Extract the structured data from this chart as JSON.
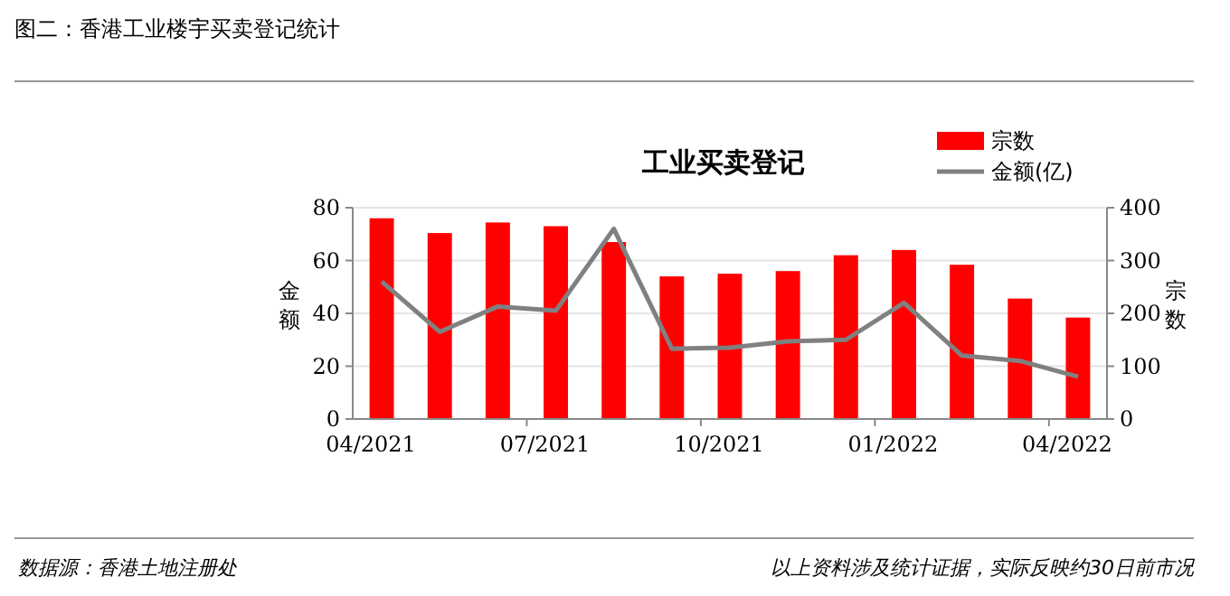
{
  "chart_data": {
    "type": "bar",
    "title": "图二：香港工业楼宇买卖登记统计",
    "subtitle": "工业买卖登记",
    "categories": [
      "04/2021",
      null,
      null,
      "07/2021",
      null,
      null,
      "10/2021",
      null,
      null,
      "01/2022",
      null,
      null,
      "04/2022"
    ],
    "series": [
      {
        "name": "宗数",
        "axis": "y2",
        "color": "#ff0000",
        "values": [
          380,
          352,
          372,
          365,
          335,
          270,
          275,
          280,
          310,
          320,
          292,
          228,
          192
        ]
      },
      {
        "name": "金额(亿)",
        "type": "line",
        "axis": "y",
        "color": "#808080",
        "values": [
          52,
          33,
          42.6,
          41,
          72,
          26.6,
          27,
          29.4,
          30,
          44,
          24,
          22,
          16
        ]
      }
    ],
    "ylabel": "金额",
    "y2label": "宗数",
    "ylim": [
      0,
      80
    ],
    "yticks": [
      0,
      20,
      40,
      60,
      80
    ],
    "y2lim": [
      0,
      400
    ],
    "y2ticks": [
      0,
      100,
      200,
      300,
      400
    ],
    "grid": "y",
    "legend": "top right",
    "marker": "none",
    "annotations": [
      "数据源：香港土地注册处",
      "以上资料涉及统计证据，实际反映约30日前市况"
    ]
  }
}
